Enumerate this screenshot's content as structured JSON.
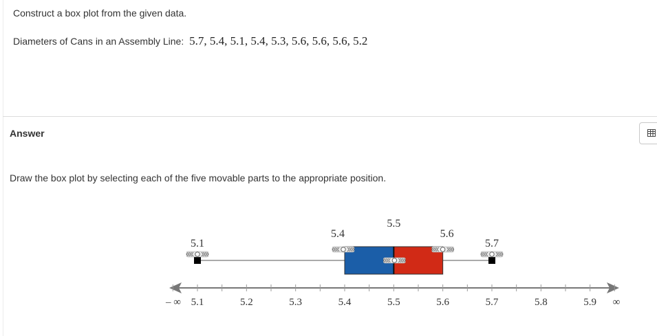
{
  "question": {
    "prompt": "Construct a box plot from the given data.",
    "data_label": "Diameters of Cans in an Assembly Line:",
    "data_values": "5.7, 5.4, 5.1, 5.4, 5.3, 5.6, 5.6, 5.6, 5.2"
  },
  "answer": {
    "label": "Answer",
    "instruction": "Draw the box plot by selecting each of the five movable parts to the appropriate position.",
    "table_button_icon": "table-icon"
  },
  "boxplot": {
    "axis": {
      "min": 5.05,
      "max": 5.95,
      "tick_step": 0.05,
      "labels": [
        "5.1",
        "5.2",
        "5.3",
        "5.4",
        "5.5",
        "5.6",
        "5.7",
        "5.8",
        "5.9"
      ],
      "neg_infinity_label": "– ∞",
      "pos_infinity_label": "∞"
    },
    "handles": {
      "min": {
        "value": 5.1,
        "label": "5.1"
      },
      "q1": {
        "value": 5.4,
        "label": "5.4"
      },
      "median": {
        "value": 5.5,
        "label": "5.5"
      },
      "q3": {
        "value": 5.6,
        "label": "5.6"
      },
      "max": {
        "value": 5.7,
        "label": "5.7"
      }
    },
    "colors": {
      "lower_box": "#1b5ea8",
      "upper_box": "#d12a16",
      "whisker": "#555555",
      "axis": "#777777"
    }
  }
}
